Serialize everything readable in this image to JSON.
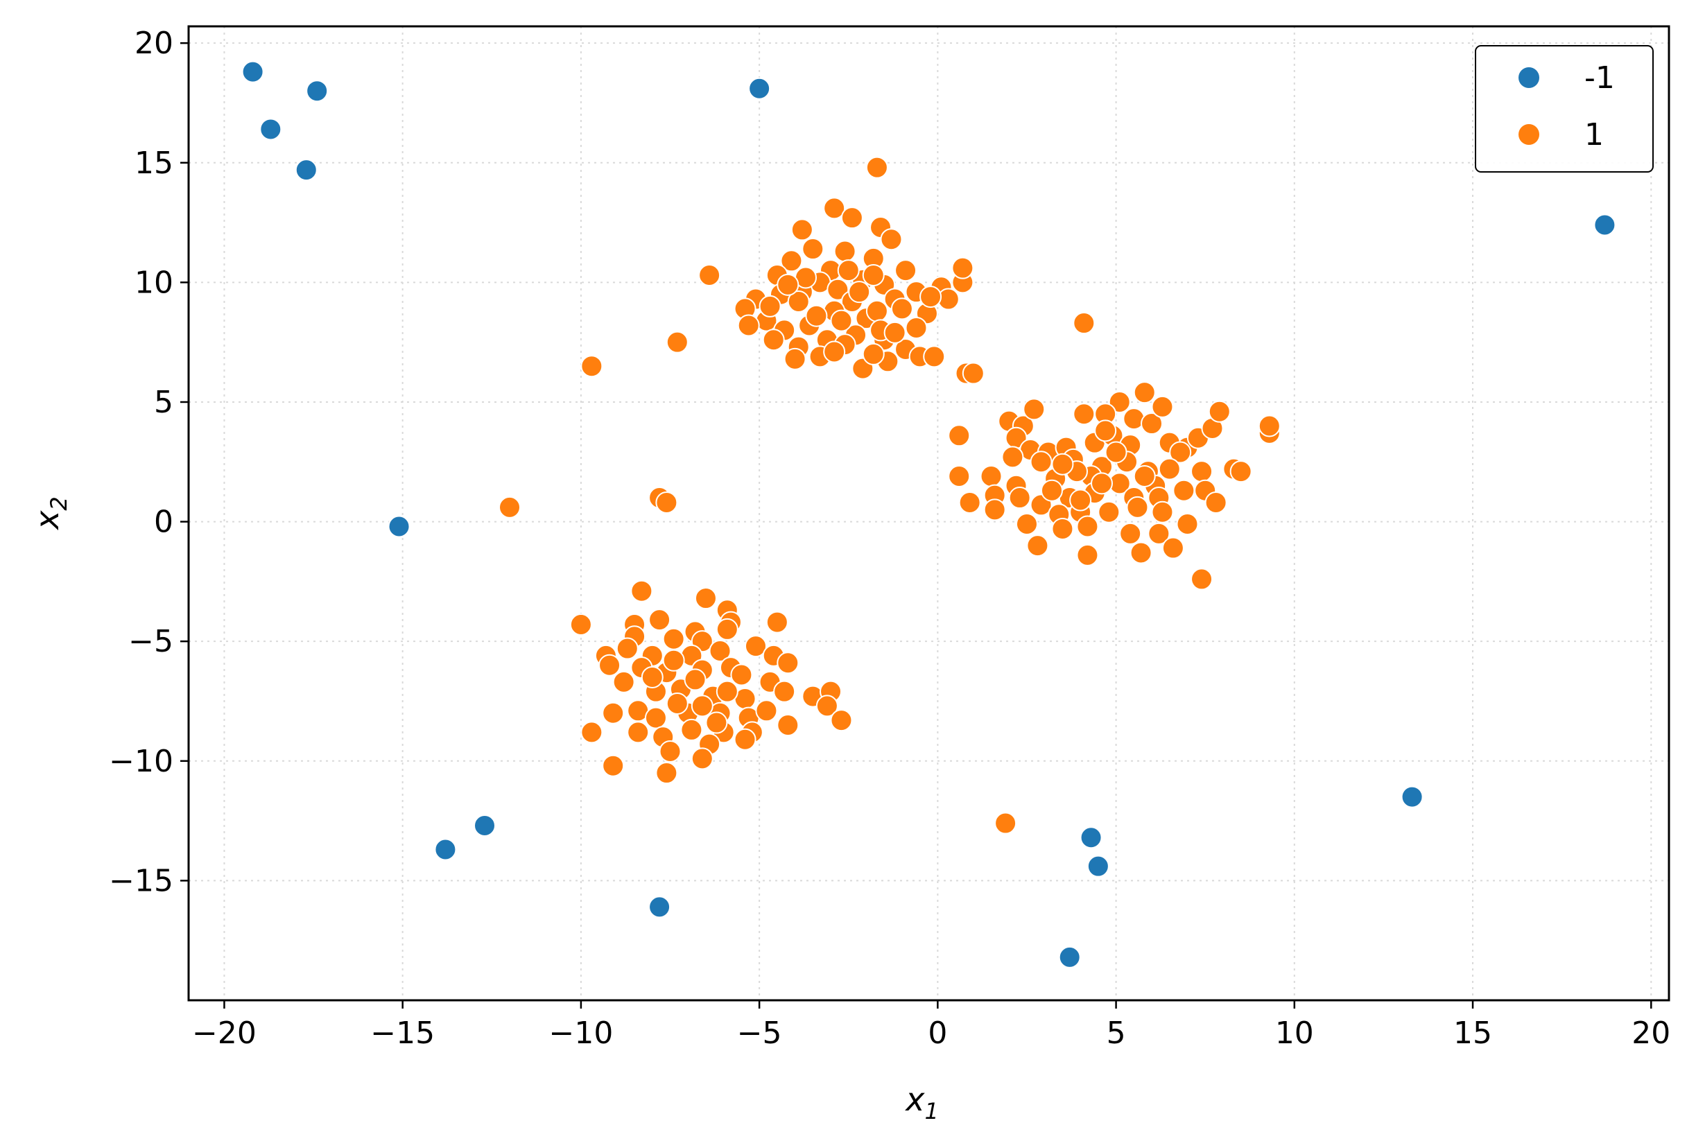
{
  "chart_data": {
    "type": "scatter",
    "title": "",
    "xlabel": "x",
    "xlabel_sub": "1",
    "ylabel": "x",
    "ylabel_sub": "2",
    "xlim": [
      -21,
      20.5
    ],
    "ylim": [
      -20,
      20.7
    ],
    "x_ticks": [
      -20,
      -15,
      -10,
      -5,
      0,
      5,
      10,
      15,
      20
    ],
    "x_tick_labels": [
      "−20",
      "−15",
      "−10",
      "−5",
      "0",
      "5",
      "10",
      "15",
      "20"
    ],
    "y_ticks": [
      -15,
      -10,
      -5,
      0,
      5,
      10,
      15,
      20
    ],
    "y_tick_labels": [
      "−15",
      "−10",
      "−5",
      "0",
      "5",
      "10",
      "15",
      "20"
    ],
    "grid": true,
    "legend_position": "top-right",
    "series": [
      {
        "name": "-1",
        "color": "#1f77b4",
        "points": [
          [
            -19.2,
            18.8
          ],
          [
            -18.7,
            16.4
          ],
          [
            -17.4,
            18.0
          ],
          [
            -17.7,
            14.7
          ],
          [
            -5.0,
            18.1
          ],
          [
            18.7,
            12.4
          ],
          [
            -15.1,
            -0.2
          ],
          [
            13.3,
            -11.5
          ],
          [
            -12.7,
            -12.7
          ],
          [
            -13.8,
            -13.7
          ],
          [
            -7.8,
            -16.1
          ],
          [
            4.3,
            -13.2
          ],
          [
            4.5,
            -14.4
          ],
          [
            3.7,
            -18.2
          ]
        ]
      },
      {
        "name": "1",
        "color": "#ff7f0e",
        "points": [
          [
            -1.7,
            14.8
          ],
          [
            -2.9,
            13.1
          ],
          [
            -3.8,
            12.2
          ],
          [
            -2.4,
            12.7
          ],
          [
            -1.6,
            12.3
          ],
          [
            -1.3,
            11.8
          ],
          [
            -2.6,
            11.3
          ],
          [
            -3.5,
            11.4
          ],
          [
            -4.1,
            10.9
          ],
          [
            -1.8,
            11.0
          ],
          [
            -0.9,
            10.5
          ],
          [
            -3.0,
            10.5
          ],
          [
            -4.5,
            10.3
          ],
          [
            -3.3,
            10.0
          ],
          [
            -2.1,
            10.1
          ],
          [
            -1.5,
            9.9
          ],
          [
            -2.8,
            9.7
          ],
          [
            -3.8,
            9.6
          ],
          [
            -4.4,
            9.5
          ],
          [
            -5.1,
            9.3
          ],
          [
            -5.4,
            8.9
          ],
          [
            -2.4,
            9.2
          ],
          [
            -1.2,
            9.3
          ],
          [
            -0.6,
            9.6
          ],
          [
            0.1,
            9.8
          ],
          [
            0.7,
            10.0
          ],
          [
            0.7,
            10.6
          ],
          [
            -6.4,
            10.3
          ],
          [
            -3.9,
            9.2
          ],
          [
            -2.9,
            8.8
          ],
          [
            -2.0,
            8.5
          ],
          [
            -1.7,
            8.8
          ],
          [
            -1.0,
            8.9
          ],
          [
            -0.3,
            8.7
          ],
          [
            -0.6,
            8.1
          ],
          [
            -4.8,
            8.4
          ],
          [
            -4.3,
            8.0
          ],
          [
            -5.3,
            8.2
          ],
          [
            -3.6,
            8.2
          ],
          [
            -3.1,
            7.6
          ],
          [
            -2.3,
            7.8
          ],
          [
            -1.5,
            7.6
          ],
          [
            -0.9,
            7.2
          ],
          [
            -3.9,
            7.3
          ],
          [
            -4.6,
            7.6
          ],
          [
            -2.6,
            7.4
          ],
          [
            -3.3,
            6.9
          ],
          [
            -2.1,
            6.4
          ],
          [
            -1.4,
            6.7
          ],
          [
            -0.5,
            6.9
          ],
          [
            -0.1,
            6.9
          ],
          [
            0.8,
            6.2
          ],
          [
            1.0,
            6.2
          ],
          [
            -7.3,
            7.5
          ],
          [
            -9.7,
            6.5
          ],
          [
            0.3,
            9.3
          ],
          [
            -0.2,
            9.4
          ],
          [
            -1.8,
            10.3
          ],
          [
            -2.5,
            10.5
          ],
          [
            -3.7,
            10.2
          ],
          [
            -4.2,
            9.9
          ],
          [
            -4.7,
            9.0
          ],
          [
            -2.2,
            9.6
          ],
          [
            -2.7,
            8.4
          ],
          [
            -1.6,
            8.0
          ],
          [
            -1.2,
            7.9
          ],
          [
            -3.4,
            8.6
          ],
          [
            -4.0,
            6.8
          ],
          [
            -2.9,
            7.1
          ],
          [
            -1.8,
            7.0
          ],
          [
            4.1,
            8.3
          ],
          [
            2.0,
            4.2
          ],
          [
            2.4,
            4.0
          ],
          [
            2.7,
            4.7
          ],
          [
            4.1,
            4.5
          ],
          [
            5.1,
            5.0
          ],
          [
            5.8,
            5.4
          ],
          [
            4.7,
            4.5
          ],
          [
            5.5,
            4.3
          ],
          [
            6.0,
            4.1
          ],
          [
            6.3,
            4.8
          ],
          [
            7.0,
            3.1
          ],
          [
            7.3,
            3.5
          ],
          [
            7.7,
            3.9
          ],
          [
            7.9,
            4.6
          ],
          [
            9.3,
            3.7
          ],
          [
            9.3,
            4.0
          ],
          [
            0.6,
            3.6
          ],
          [
            2.2,
            3.5
          ],
          [
            2.6,
            3.0
          ],
          [
            3.1,
            2.9
          ],
          [
            3.6,
            3.1
          ],
          [
            4.4,
            3.3
          ],
          [
            4.9,
            3.6
          ],
          [
            5.4,
            3.2
          ],
          [
            6.5,
            3.3
          ],
          [
            6.8,
            2.9
          ],
          [
            2.1,
            2.7
          ],
          [
            2.9,
            2.5
          ],
          [
            3.8,
            2.6
          ],
          [
            4.6,
            2.3
          ],
          [
            5.3,
            2.5
          ],
          [
            5.9,
            2.1
          ],
          [
            6.5,
            2.2
          ],
          [
            7.4,
            2.1
          ],
          [
            8.3,
            2.2
          ],
          [
            8.5,
            2.1
          ],
          [
            1.5,
            1.9
          ],
          [
            2.2,
            1.5
          ],
          [
            3.3,
            1.8
          ],
          [
            4.3,
            1.9
          ],
          [
            5.1,
            1.6
          ],
          [
            6.1,
            1.5
          ],
          [
            6.9,
            1.3
          ],
          [
            7.5,
            1.3
          ],
          [
            0.6,
            1.9
          ],
          [
            1.6,
            1.1
          ],
          [
            2.3,
            1.0
          ],
          [
            2.9,
            0.7
          ],
          [
            3.7,
            1.0
          ],
          [
            4.4,
            1.2
          ],
          [
            5.5,
            1.0
          ],
          [
            6.2,
            1.0
          ],
          [
            7.8,
            0.8
          ],
          [
            0.9,
            0.8
          ],
          [
            1.6,
            0.5
          ],
          [
            3.4,
            0.3
          ],
          [
            4.0,
            0.4
          ],
          [
            4.8,
            0.4
          ],
          [
            5.6,
            0.6
          ],
          [
            7.0,
            -0.1
          ],
          [
            2.5,
            -0.1
          ],
          [
            3.5,
            -0.3
          ],
          [
            4.2,
            -0.2
          ],
          [
            5.4,
            -0.5
          ],
          [
            6.2,
            -0.5
          ],
          [
            2.8,
            -1.0
          ],
          [
            4.2,
            -1.4
          ],
          [
            5.7,
            -1.3
          ],
          [
            6.6,
            -1.1
          ],
          [
            7.4,
            -2.4
          ],
          [
            3.9,
            2.1
          ],
          [
            4.6,
            1.6
          ],
          [
            5.0,
            2.9
          ],
          [
            3.2,
            1.3
          ],
          [
            5.8,
            1.9
          ],
          [
            4.0,
            0.9
          ],
          [
            3.5,
            2.4
          ],
          [
            6.3,
            0.4
          ],
          [
            4.7,
            3.8
          ],
          [
            -7.8,
            1.0
          ],
          [
            -7.6,
            0.8
          ],
          [
            -12.0,
            0.6
          ],
          [
            -8.3,
            -2.9
          ],
          [
            -6.5,
            -3.2
          ],
          [
            -5.9,
            -3.7
          ],
          [
            -10.0,
            -4.3
          ],
          [
            -8.5,
            -4.3
          ],
          [
            -7.8,
            -4.1
          ],
          [
            -6.8,
            -4.6
          ],
          [
            -5.8,
            -4.2
          ],
          [
            -4.5,
            -4.2
          ],
          [
            -8.5,
            -4.8
          ],
          [
            -7.4,
            -4.9
          ],
          [
            -6.6,
            -5.0
          ],
          [
            -5.9,
            -4.5
          ],
          [
            -9.3,
            -5.6
          ],
          [
            -8.7,
            -5.3
          ],
          [
            -8.0,
            -5.6
          ],
          [
            -6.9,
            -5.6
          ],
          [
            -6.1,
            -5.4
          ],
          [
            -5.1,
            -5.2
          ],
          [
            -4.6,
            -5.6
          ],
          [
            -4.2,
            -5.9
          ],
          [
            -9.2,
            -6.0
          ],
          [
            -8.3,
            -6.1
          ],
          [
            -7.6,
            -6.3
          ],
          [
            -6.6,
            -6.2
          ],
          [
            -5.8,
            -6.1
          ],
          [
            -4.7,
            -6.7
          ],
          [
            -8.8,
            -6.7
          ],
          [
            -7.9,
            -7.1
          ],
          [
            -7.2,
            -7.0
          ],
          [
            -6.3,
            -7.3
          ],
          [
            -5.4,
            -7.4
          ],
          [
            -4.3,
            -7.1
          ],
          [
            -3.5,
            -7.3
          ],
          [
            -3.0,
            -7.1
          ],
          [
            -3.1,
            -7.7
          ],
          [
            -9.1,
            -8.0
          ],
          [
            -8.4,
            -7.9
          ],
          [
            -7.9,
            -8.2
          ],
          [
            -7.0,
            -8.0
          ],
          [
            -6.1,
            -8.0
          ],
          [
            -5.3,
            -8.2
          ],
          [
            -4.8,
            -7.9
          ],
          [
            -2.7,
            -8.3
          ],
          [
            -9.7,
            -8.8
          ],
          [
            -8.4,
            -8.8
          ],
          [
            -7.7,
            -9.0
          ],
          [
            -6.9,
            -8.7
          ],
          [
            -6.0,
            -8.8
          ],
          [
            -5.2,
            -8.8
          ],
          [
            -4.2,
            -8.5
          ],
          [
            -7.5,
            -9.6
          ],
          [
            -6.4,
            -9.3
          ],
          [
            -5.4,
            -9.1
          ],
          [
            -9.1,
            -10.2
          ],
          [
            -7.6,
            -10.5
          ],
          [
            -6.6,
            -9.9
          ],
          [
            -7.4,
            -5.8
          ],
          [
            -6.8,
            -6.6
          ],
          [
            -5.5,
            -6.4
          ],
          [
            -7.3,
            -7.6
          ],
          [
            -6.6,
            -7.7
          ],
          [
            -5.9,
            -7.1
          ],
          [
            -8.0,
            -6.5
          ],
          [
            -6.2,
            -8.4
          ],
          [
            1.9,
            -12.6
          ]
        ]
      }
    ]
  }
}
